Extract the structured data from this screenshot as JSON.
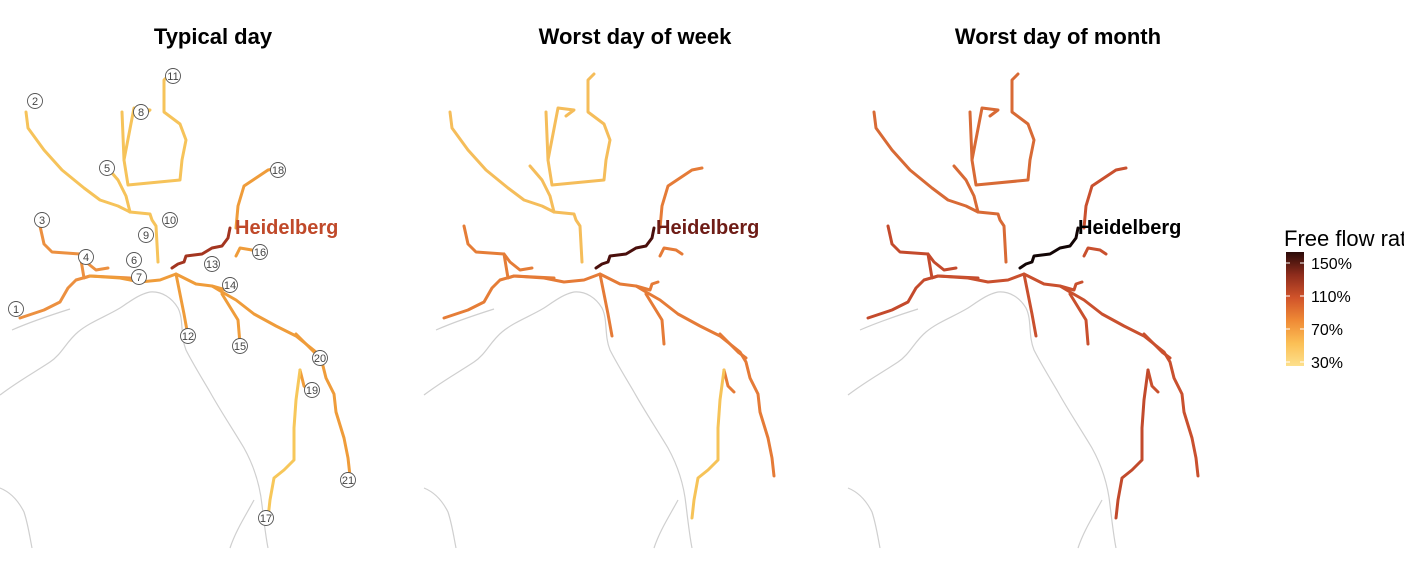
{
  "panels": [
    {
      "id": "typical",
      "title": "Typical day",
      "hub_label": "Heidelberg",
      "hub_color": "#c0492a",
      "base": "#f6c35a",
      "main": "#ef9c3a",
      "west": "#ec9040",
      "se": "#f2a247",
      "south": "#f7c75a",
      "hub_route": "#a33520",
      "numbered": true
    },
    {
      "id": "week",
      "title": "Worst day of week",
      "hub_label": "Heidelberg",
      "hub_color": "#6e1c16",
      "base": "#f5bd5a",
      "main": "#e57b37",
      "west": "#e57d37",
      "se": "#e8903a",
      "south": "#f6c358",
      "hub_route": "#4a0f0c",
      "numbered": false
    },
    {
      "id": "month",
      "title": "Worst day of month",
      "hub_label": "Heidelberg",
      "hub_color": "#000000",
      "base": "#d86a35",
      "main": "#c9502e",
      "west": "#c44a2c",
      "se": "#cf5b30",
      "south": "#c24a2c",
      "hub_route": "#120505",
      "numbered": false
    }
  ],
  "route_labels": [
    "1",
    "2",
    "3",
    "4",
    "5",
    "6",
    "7",
    "8",
    "9",
    "10",
    "11",
    "12",
    "13",
    "14",
    "15",
    "16",
    "17",
    "18",
    "19",
    "20",
    "21"
  ],
  "legend": {
    "title": "Free flow ratio",
    "ticks": [
      "150%",
      "110%",
      "70%",
      "30%"
    ],
    "colors": [
      "#2a0a08",
      "#8e2c1c",
      "#d0532a",
      "#ef8a35",
      "#fbbf55",
      "#fde08c"
    ]
  },
  "colors": {
    "coast": "#cfcfcf",
    "label_stroke": "#555555"
  }
}
